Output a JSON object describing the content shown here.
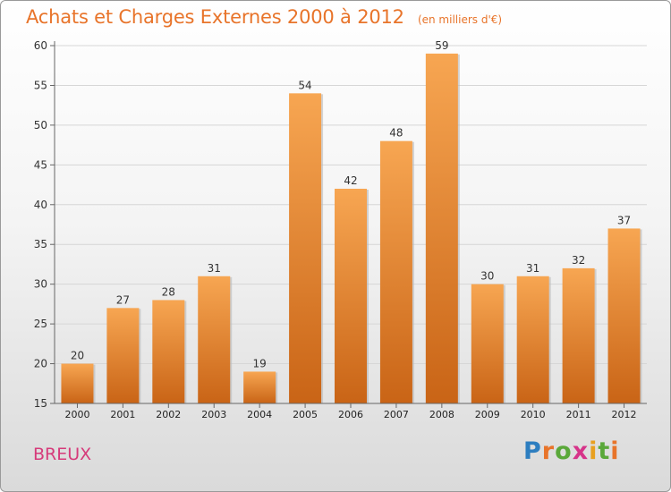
{
  "header": {
    "title": "Achats et Charges Externes 2000 à 2012",
    "subtitle": "(en milliers d'€)"
  },
  "footer": {
    "commune": "BREUX",
    "logo_text": "Proxiti"
  },
  "colors": {
    "title": "#e8742a",
    "bar_top": "#f7a652",
    "bar_bottom": "#c96416",
    "commune": "#d63a7a"
  },
  "chart_data": {
    "type": "bar",
    "title": "Achats et Charges Externes 2000 à 2012",
    "subtitle": "(en milliers d'€)",
    "categories": [
      "2000",
      "2001",
      "2002",
      "2003",
      "2004",
      "2005",
      "2006",
      "2007",
      "2008",
      "2009",
      "2010",
      "2011",
      "2012"
    ],
    "values": [
      20,
      27,
      28,
      31,
      19,
      54,
      42,
      48,
      59,
      30,
      31,
      32,
      37
    ],
    "ylim": [
      15,
      60
    ],
    "yticks": [
      15,
      20,
      25,
      30,
      35,
      40,
      45,
      50,
      55,
      60
    ],
    "grid": true,
    "data_labels": true
  }
}
